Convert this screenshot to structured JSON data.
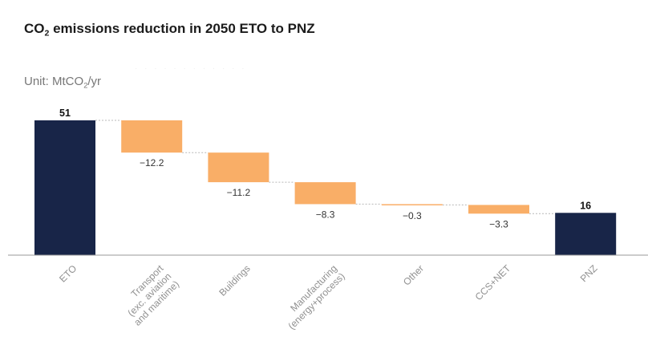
{
  "chart_data": {
    "type": "waterfall",
    "title_prefix": "CO",
    "title_sub": "2",
    "title_suffix": " emissions reduction in 2050 ETO to PNZ",
    "unit_prefix": "Unit: MtCO",
    "unit_sub": "2",
    "unit_suffix": "/yr",
    "ghost_text": "· · · · ·   · · ·  ·  · · ·",
    "categories": [
      [
        "ETO"
      ],
      [
        "Transport",
        "(exc. aviation",
        "and maritime)"
      ],
      [
        "Buildings"
      ],
      [
        "Manufacturing",
        "(energy+process)"
      ],
      [
        "Other"
      ],
      [
        "CCS+NET"
      ],
      [
        "PNZ"
      ]
    ],
    "values": [
      51,
      -12.2,
      -11.2,
      -8.3,
      -0.3,
      -3.3,
      16
    ],
    "value_labels": [
      "51",
      "−12.2",
      "−11.2",
      "−8.3",
      "−0.3",
      "−3.3",
      "16"
    ],
    "kinds": [
      "total",
      "delta",
      "delta",
      "delta",
      "delta",
      "delta",
      "total"
    ],
    "ylim": [
      0,
      51
    ],
    "colors": {
      "total": "#182548",
      "decrease": "#f9ae67",
      "connector": "#b8b8b8",
      "axis": "#9a9a9a"
    }
  }
}
